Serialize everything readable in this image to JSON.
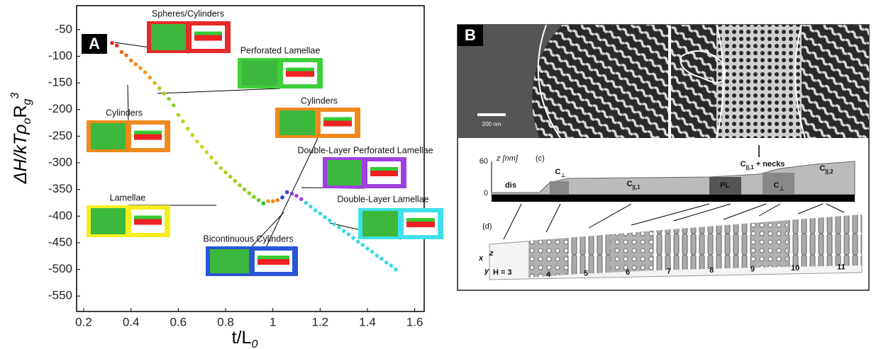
{
  "chart_data": {
    "type": "scatter",
    "panel_label": "A",
    "xlabel": [
      "t/L",
      "0"
    ],
    "ylabel": [
      "ΔH/kTρ",
      "o",
      "R",
      "g",
      "3"
    ],
    "xlim": [
      0.17,
      1.64
    ],
    "ylim": [
      -579,
      -5
    ],
    "xticks": [
      0.2,
      0.4,
      0.6,
      0.8,
      1,
      1.2,
      1.4,
      1.6
    ],
    "yticks": [
      -50,
      -100,
      -150,
      -200,
      -250,
      -300,
      -350,
      -400,
      -450,
      -500,
      -550
    ],
    "x": [
      0.32,
      0.34,
      0.36,
      0.38,
      0.4,
      0.42,
      0.44,
      0.46,
      0.48,
      0.5,
      0.52,
      0.54,
      0.56,
      0.58,
      0.6,
      0.62,
      0.64,
      0.66,
      0.68,
      0.7,
      0.72,
      0.74,
      0.76,
      0.78,
      0.8,
      0.82,
      0.84,
      0.86,
      0.88,
      0.9,
      0.92,
      0.94,
      0.96,
      0.98,
      1.0,
      1.02,
      1.04,
      1.06,
      1.08,
      1.1,
      1.12,
      1.14,
      1.16,
      1.18,
      1.2,
      1.22,
      1.24,
      1.26,
      1.28,
      1.3,
      1.32,
      1.34,
      1.36,
      1.38,
      1.4,
      1.42,
      1.44,
      1.46,
      1.48,
      1.5,
      1.52
    ],
    "values": [
      -75,
      -80,
      -92,
      -98,
      -108,
      -115,
      -122,
      -130,
      -140,
      -150,
      -160,
      -170,
      -180,
      -192,
      -210,
      -222,
      -236,
      -248,
      -260,
      -270,
      -280,
      -290,
      -300,
      -310,
      -318,
      -326,
      -334,
      -342,
      -350,
      -357,
      -364,
      -370,
      -376,
      -372,
      -372,
      -370,
      -365,
      -355,
      -358,
      -362,
      -368,
      -375,
      -382,
      -389,
      -395,
      -402,
      -408,
      -415,
      -421,
      -428,
      -434,
      -441,
      -448,
      -454,
      -461,
      -467,
      -474,
      -480,
      -487,
      -493,
      -500
    ],
    "colors": [
      "#e82020",
      "#e83020",
      "#f06020",
      "#f07020",
      "#f08020",
      "#f08a20",
      "#f09020",
      "#f09a20",
      "#f0a020",
      "#e0b020",
      "#c8c020",
      "#a8c830",
      "#90d030",
      "#88d030",
      "#b8d020",
      "#c0d020",
      "#c8d020",
      "#d0d020",
      "#d8d020",
      "#d8d020",
      "#d0d020",
      "#c8d020",
      "#c0d020",
      "#b8d020",
      "#b0d020",
      "#a8d020",
      "#a0d020",
      "#98d020",
      "#90d020",
      "#88d020",
      "#80d020",
      "#60d030",
      "#20c040",
      "#f0a020",
      "#f09020",
      "#f08020",
      "#2040d0",
      "#4040e0",
      "#8040e0",
      "#a040e0",
      "#a040e0",
      "#40d0e0",
      "#40d8e0",
      "#40d8e0",
      "#40d8e0",
      "#40d8e0",
      "#40d8e0",
      "#40d8e0",
      "#40d8e0",
      "#40d8e0",
      "#40d8e0",
      "#40d8e0",
      "#40d8e0",
      "#40d8e0",
      "#40d8e0",
      "#40d8e0",
      "#40d8e0",
      "#40d8e0",
      "#40d8e0",
      "#40d8e0",
      "#40d8e0"
    ],
    "annotations": [
      "Spheres/Cylinders",
      "Perforated Lamellae",
      "Cylinders",
      "Cylinders",
      "Double-Layer Perforated Lamellae",
      "Lamellae",
      "Double-Layer Lamellae",
      "Bicontinuous Cylinders"
    ]
  },
  "panel_b": {
    "panel_label": "B",
    "scale_bar": "200 nm",
    "z_axis": "z [nm]",
    "z_top": "60",
    "z_bottom": "0",
    "sub_c": "(c)",
    "sub_d": "(d)",
    "phases": [
      {
        "main": "dis",
        "sub": ""
      },
      {
        "main": "C",
        "sub": "⊥"
      },
      {
        "main": "C",
        "sub": "||,1"
      },
      {
        "main": "PL",
        "sub": ""
      },
      {
        "main": "C",
        "sub": "⊥"
      },
      {
        "main": "C",
        "sub": "||,2"
      }
    ],
    "necks": {
      "main": "C",
      "sub": "||,1",
      "suffix": "+ necks"
    },
    "h_label": "H = 3",
    "h_values": [
      "4",
      "5",
      "6",
      "7",
      "8",
      "9",
      "10",
      "11"
    ],
    "axes": [
      "x",
      "y",
      "z"
    ]
  }
}
